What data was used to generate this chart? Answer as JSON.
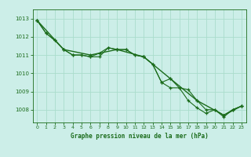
{
  "title": "Graphe pression niveau de la mer (hPa)",
  "bg_color": "#cceee8",
  "grid_color": "#aaddcc",
  "line_color": "#1a6b1a",
  "marker_color": "#1a6b1a",
  "xlim": [
    -0.5,
    23.5
  ],
  "ylim": [
    1007.3,
    1013.5
  ],
  "yticks": [
    1008,
    1009,
    1010,
    1011,
    1012,
    1013
  ],
  "xticks": [
    0,
    1,
    2,
    3,
    4,
    5,
    6,
    7,
    8,
    9,
    10,
    11,
    12,
    13,
    14,
    15,
    16,
    17,
    18,
    19,
    20,
    21,
    22,
    23
  ],
  "series1": {
    "x": [
      0,
      1,
      2,
      3,
      4,
      5,
      6,
      7,
      8,
      9,
      10,
      11,
      12,
      13,
      14,
      15,
      16,
      17,
      18,
      19,
      20,
      21,
      22,
      23
    ],
    "y": [
      1012.9,
      1012.2,
      1011.8,
      1011.3,
      1011.0,
      1011.0,
      1010.9,
      1010.9,
      1011.4,
      1011.3,
      1011.3,
      1011.0,
      1010.9,
      1010.5,
      1009.5,
      1009.7,
      1009.2,
      1009.1,
      1008.5,
      1008.0,
      1008.0,
      1007.7,
      1008.0,
      1008.2
    ]
  },
  "series2": {
    "x": [
      0,
      1,
      2,
      3,
      4,
      5,
      6,
      7,
      8,
      9,
      10,
      11,
      12,
      13,
      14,
      15,
      16,
      17,
      18,
      19,
      20,
      21,
      22,
      23
    ],
    "y": [
      1012.9,
      1012.2,
      1011.8,
      1011.3,
      1011.0,
      1011.0,
      1010.9,
      1011.1,
      1011.4,
      1011.3,
      1011.3,
      1011.0,
      1010.9,
      1010.5,
      1009.5,
      1009.2,
      1009.2,
      1008.5,
      1008.1,
      1007.8,
      1008.0,
      1007.6,
      1008.0,
      1008.2
    ]
  },
  "series3": {
    "x": [
      0,
      3,
      6,
      9,
      12,
      15,
      18,
      21,
      23
    ],
    "y": [
      1012.9,
      1011.3,
      1011.0,
      1011.3,
      1010.9,
      1009.7,
      1008.5,
      1007.7,
      1008.2
    ]
  }
}
